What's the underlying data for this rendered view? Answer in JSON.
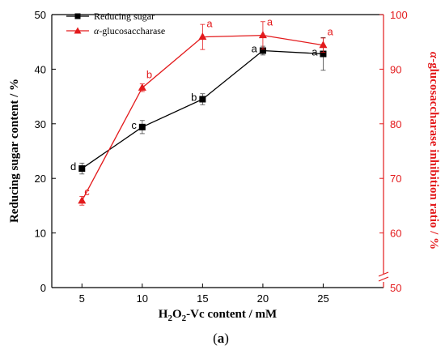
{
  "chart_data": {
    "type": "line",
    "x": [
      5,
      10,
      15,
      20,
      25
    ],
    "xlim": [
      2.5,
      30
    ],
    "xticks": [
      5,
      10,
      15,
      20,
      25
    ],
    "xlabel": {
      "prefix": "H",
      "sub1": "2",
      "mid": "O",
      "sub2": "2",
      "suffix": "-Vc content / mM"
    },
    "ylabel_left": "Reducing sugar content  / %",
    "ylim_left": [
      0,
      50
    ],
    "yticks_left": [
      0,
      10,
      20,
      30,
      40,
      50
    ],
    "ylabel_right": {
      "italic": "α",
      "rest": "-glucosaccharase inhibition ratio / %"
    },
    "ylim_right": [
      50,
      100
    ],
    "yticks_right": [
      50,
      60,
      70,
      80,
      90,
      100
    ],
    "axis_break": "right axis break between 50 and 60",
    "series": [
      {
        "name": "Reducing sugar",
        "axis": "left",
        "color": "#000000",
        "marker": "square",
        "values": [
          21.8,
          29.4,
          34.5,
          43.4,
          42.8
        ],
        "errors": [
          1.0,
          1.2,
          1.0,
          0.8,
          3.0
        ],
        "labels": [
          "d",
          "c",
          "b",
          "a",
          "a"
        ]
      },
      {
        "name": "α-glucosaccharase",
        "name_italic": "α",
        "name_rest": "-glucosaccharase",
        "axis": "right",
        "color": "#e31a1c",
        "marker": "triangle",
        "values": [
          65.9,
          86.6,
          95.9,
          96.2,
          94.4
        ],
        "errors": [
          0.8,
          0.7,
          2.3,
          2.5,
          1.3
        ],
        "labels": [
          "c",
          "b",
          "a",
          "a",
          "a"
        ]
      }
    ],
    "legend_position": "top-left"
  },
  "caption": {
    "open": "(",
    "letter": "a",
    "close": ")"
  }
}
